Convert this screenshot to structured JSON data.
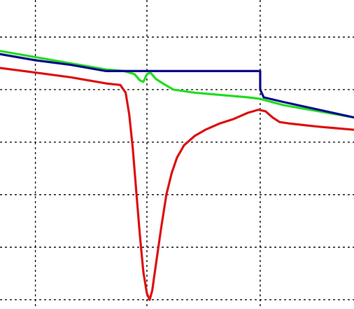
{
  "chart_data": {
    "type": "line",
    "title": "",
    "xlabel": "",
    "ylabel": "",
    "xlim": [
      0,
      100
    ],
    "ylim": [
      0,
      100
    ],
    "grid": true,
    "grid_x": [
      10,
      41.5,
      73.5
    ],
    "grid_y": [
      3,
      20,
      37,
      54,
      71,
      88
    ],
    "series": [
      {
        "color": "#dd1111",
        "x": [
          0,
          10,
          20,
          30,
          34,
          35.5,
          36.5,
          37.5,
          38.5,
          39.5,
          40.5,
          41.5,
          42.3,
          43,
          44,
          45.5,
          47,
          48.5,
          50,
          52,
          55,
          58,
          62,
          66,
          70,
          73,
          75,
          77,
          79,
          82,
          86,
          90,
          95,
          100
        ],
        "y": [
          78,
          76.5,
          75,
          73,
          72.5,
          70,
          63,
          52,
          38,
          24,
          12,
          5,
          3,
          6,
          14,
          26,
          37,
          44,
          49,
          53,
          56,
          58,
          60,
          61.5,
          63.5,
          64.5,
          64,
          62,
          60.5,
          60,
          59.5,
          59,
          58.5,
          58
        ]
      },
      {
        "color": "#22dd22",
        "x": [
          0,
          10,
          20,
          30,
          35,
          38,
          39.5,
          40.5,
          41.5,
          42.5,
          44,
          46,
          49,
          52,
          55,
          60,
          65,
          70,
          73.5,
          80,
          90,
          100
        ],
        "y": [
          83.5,
          81.5,
          79.5,
          77.5,
          77,
          76,
          74,
          73.5,
          76,
          76.5,
          74.5,
          73,
          71,
          70.5,
          70,
          69.5,
          69,
          68.5,
          68,
          66,
          64,
          62
        ]
      },
      {
        "color": "#0a0a8a",
        "x": [
          0,
          10,
          20,
          30,
          35,
          40,
          45,
          50,
          55,
          60,
          65,
          70,
          73.5,
          73.5,
          74.5,
          80,
          90,
          100
        ],
        "y": [
          82.5,
          80.5,
          79,
          77,
          77,
          77,
          77,
          77,
          77,
          77,
          77,
          77,
          77,
          71,
          68.5,
          67,
          64.5,
          62
        ]
      }
    ]
  }
}
